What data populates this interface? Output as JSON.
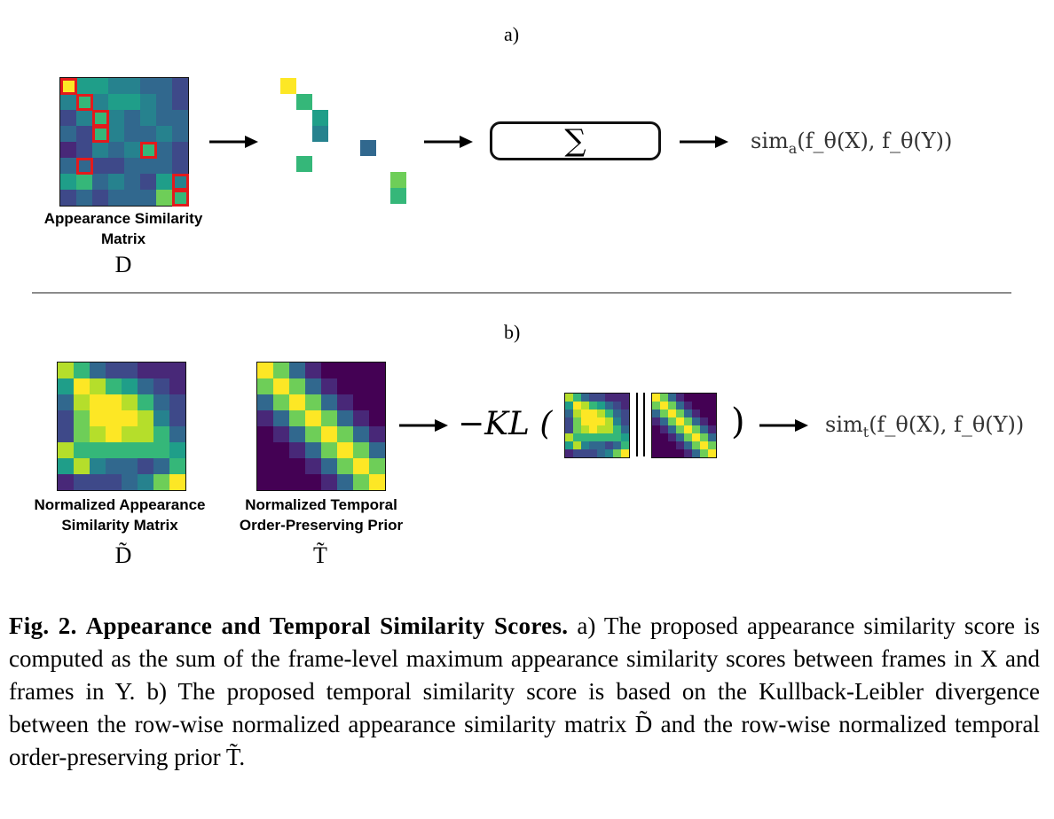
{
  "panel_a": {
    "label": "a)",
    "matrix_title": "Appearance Similarity Matrix",
    "matrix_symbol": "D",
    "sum_symbol": "∑",
    "output": "sim_a(f_θ(X), f_θ(Y))",
    "output_parts": {
      "sim": "sim",
      "sub": "a",
      "rest": "(f_θ(X), f_θ(Y))"
    }
  },
  "panel_b": {
    "label": "b)",
    "matrix1_title": "Normalized Appearance Similarity Matrix",
    "matrix1_symbol": "D̃",
    "matrix2_title": "Normalized Temporal Order-Preserving Prior",
    "matrix2_symbol": "T̃",
    "kl_text": "−KL (",
    "close_paren": ")",
    "output": "sim_t(f_θ(X), f_θ(Y))",
    "output_parts": {
      "sim": "sim",
      "sub": "t",
      "rest": "(f_θ(X), f_θ(Y))"
    }
  },
  "caption": {
    "fig_label": "Fig. 2.",
    "fig_title": "Appearance and Temporal Similarity Scores.",
    "text": "a) The proposed appearance similarity score is computed as the sum of the frame-level maximum appearance similarity scores between frames in X and frames in Y. b) The proposed temporal similarity score is based on the Kullback-Leibler divergence between the row-wise normalized appearance similarity matrix D̃ and the row-wise normalized temporal order-preserving prior T̃."
  },
  "colors": {
    "viridis": [
      "#440154",
      "#482878",
      "#3e4989",
      "#31688e",
      "#26828e",
      "#1f9e89",
      "#35b779",
      "#6ece58",
      "#b5de2b",
      "#fde725"
    ],
    "highlight": "#e31a1c"
  }
}
